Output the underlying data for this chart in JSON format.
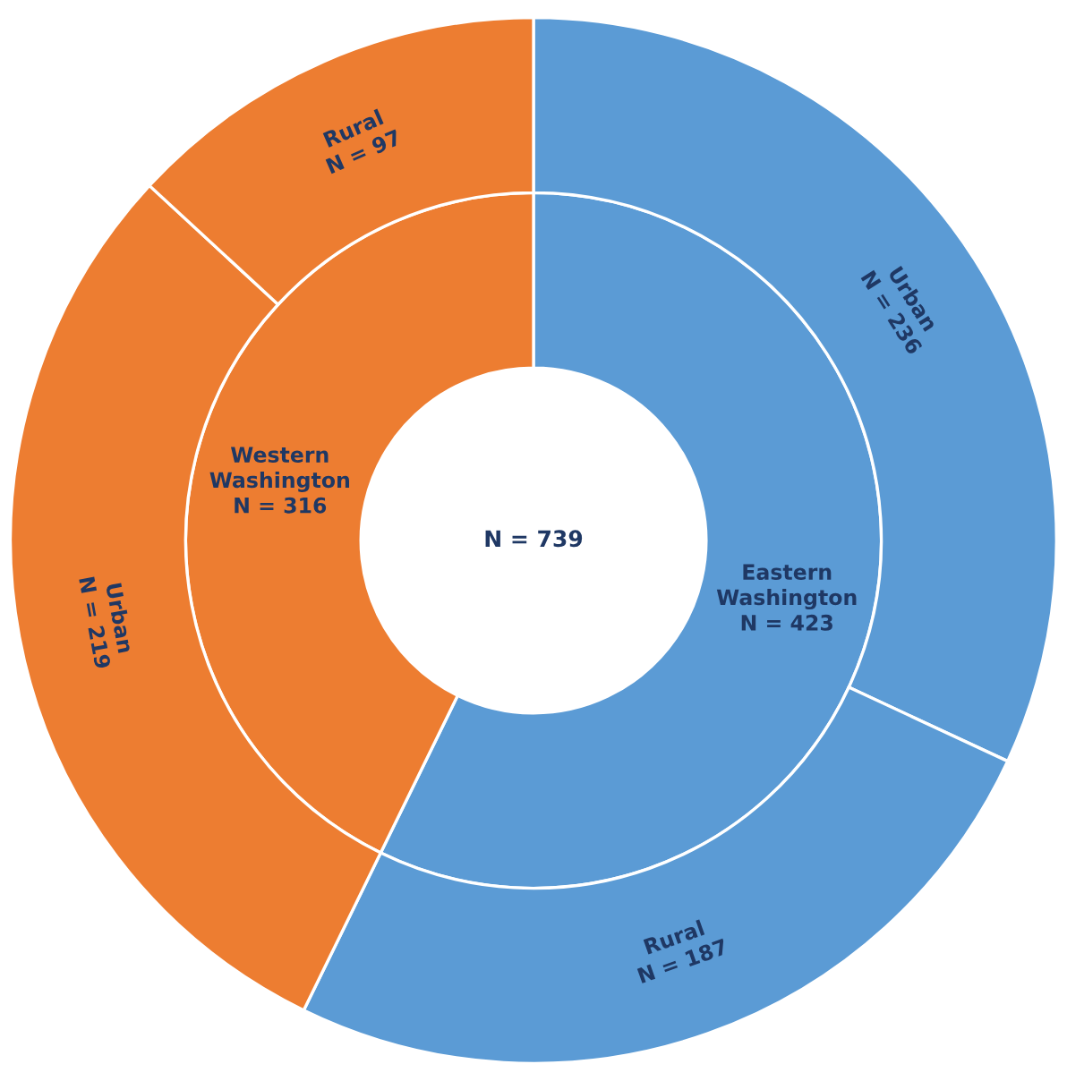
{
  "chart_data": {
    "type": "donut",
    "annotations": [
      "N = 739"
    ],
    "series": [
      {
        "values": [
          423,
          316
        ],
        "colors": [
          "#5b9bd5",
          "#ed7d31"
        ],
        "value_labels": [
          "Eastern\nWashington\nN = 423",
          "Western\nWashington\nN = 316"
        ]
      },
      {
        "values": [
          236,
          187,
          219,
          97
        ],
        "colors": [
          "#5b9bd5",
          "#5b9bd5",
          "#ed7d31",
          "#ed7d31"
        ],
        "value_labels": [
          "Urban\nN = 236",
          "Rural\nN = 187",
          "Urban\nN = 219",
          "Rural\nN = 97"
        ]
      }
    ]
  }
}
